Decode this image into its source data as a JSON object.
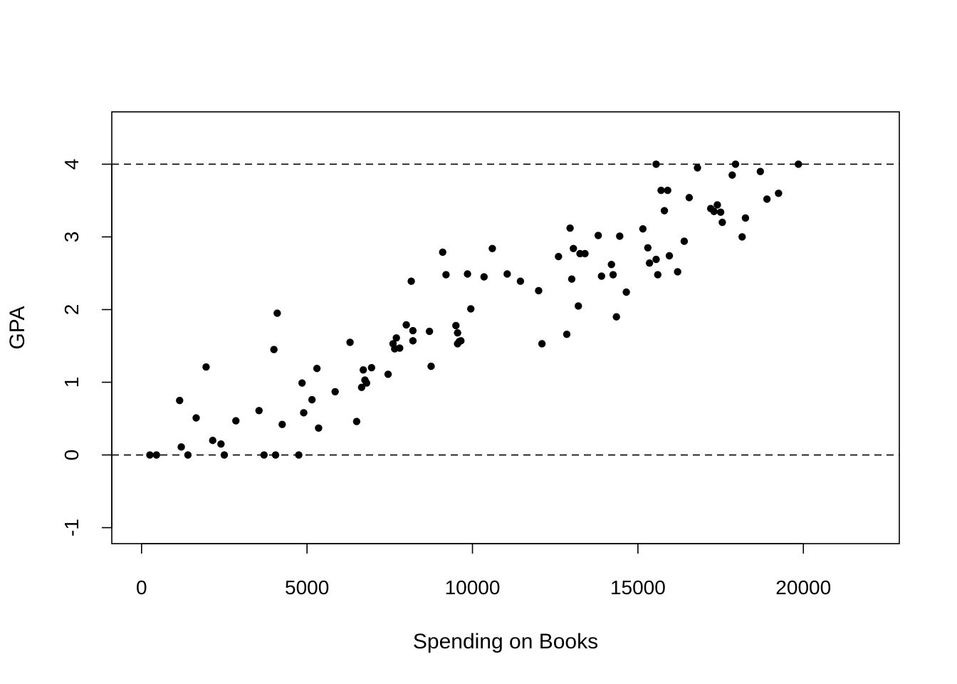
{
  "chart_data": {
    "type": "scatter",
    "title": "",
    "xlabel": "Spending on Books",
    "ylabel": "GPA",
    "xlim": [
      -900,
      22900
    ],
    "ylim": [
      -1.22,
      4.72
    ],
    "xticks": [
      0,
      5000,
      10000,
      15000,
      20000
    ],
    "xtick_labels": [
      "0",
      "5000",
      "10000",
      "15000",
      "20000"
    ],
    "yticks": [
      -1,
      0,
      1,
      2,
      3,
      4
    ],
    "ytick_labels": [
      "-1",
      "0",
      "1",
      "2",
      "3",
      "4"
    ],
    "reference_lines": [
      0,
      4
    ],
    "grid": false,
    "point_color": "#000000",
    "x": [
      250,
      450,
      1150,
      1200,
      1400,
      1650,
      1950,
      2150,
      2400,
      2500,
      2850,
      3550,
      3700,
      4000,
      4050,
      4100,
      4250,
      4750,
      4850,
      4900,
      5150,
      5300,
      5350,
      5850,
      6300,
      6500,
      6650,
      6700,
      6750,
      6800,
      6950,
      7450,
      7600,
      7650,
      7700,
      7800,
      8000,
      8150,
      8200,
      8200,
      8700,
      8750,
      9100,
      9200,
      9500,
      9550,
      9550,
      9600,
      9650,
      9850,
      9950,
      10350,
      10600,
      11050,
      11450,
      12000,
      12100,
      12600,
      12850,
      12950,
      13000,
      13050,
      13200,
      13250,
      13400,
      13800,
      13900,
      14200,
      14250,
      14350,
      14450,
      14650,
      15150,
      15300,
      15350,
      15550,
      15550,
      15600,
      15700,
      15800,
      15900,
      15950,
      16200,
      16400,
      16550,
      16800,
      17200,
      17300,
      17400,
      17500,
      17550,
      17850,
      17950,
      18150,
      18250,
      18700,
      18900,
      19250,
      19850
    ],
    "y": [
      0.0,
      0.0,
      0.75,
      0.11,
      0.0,
      0.51,
      1.21,
      0.2,
      0.15,
      0.0,
      0.47,
      0.61,
      0.0,
      1.45,
      0.0,
      1.95,
      0.42,
      0.0,
      0.99,
      0.58,
      0.76,
      1.19,
      0.37,
      0.87,
      1.55,
      0.46,
      0.93,
      1.17,
      1.03,
      0.99,
      1.2,
      1.11,
      1.53,
      1.46,
      1.61,
      1.47,
      1.79,
      2.39,
      1.71,
      1.57,
      1.7,
      1.22,
      2.79,
      2.48,
      1.78,
      1.53,
      1.68,
      1.56,
      1.57,
      2.49,
      2.01,
      2.45,
      2.84,
      2.49,
      2.39,
      2.26,
      1.53,
      2.73,
      1.66,
      3.12,
      2.42,
      2.84,
      2.05,
      2.77,
      2.77,
      3.02,
      2.46,
      2.62,
      2.48,
      1.9,
      3.01,
      2.24,
      3.11,
      2.85,
      2.64,
      4.0,
      2.69,
      2.48,
      3.64,
      3.36,
      3.64,
      2.74,
      2.52,
      2.94,
      3.54,
      3.95,
      3.39,
      3.35,
      3.44,
      3.34,
      3.2,
      3.85,
      4.0,
      3.0,
      3.26,
      3.9,
      3.52,
      3.6,
      4.0
    ]
  }
}
